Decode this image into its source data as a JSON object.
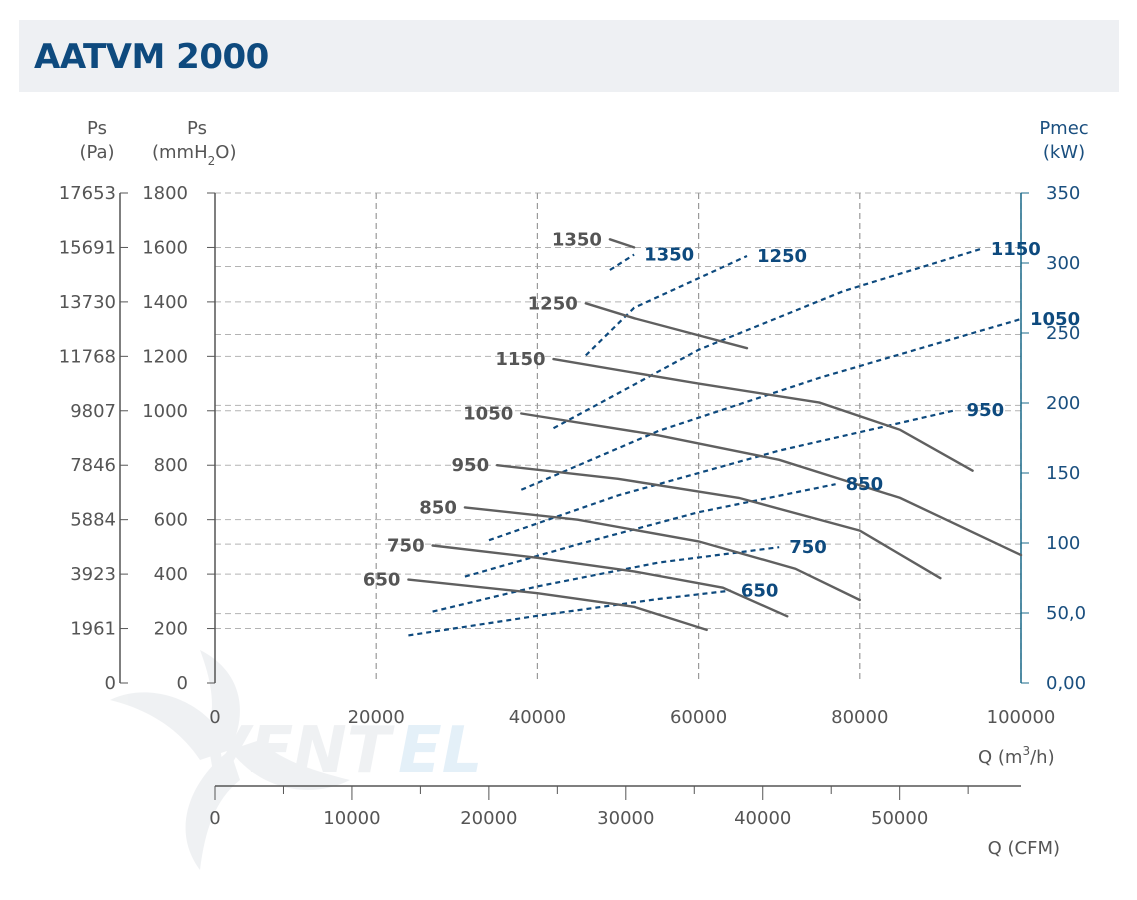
{
  "title": "AATVM 2000",
  "logo": {
    "text_main": "VENT",
    "text_accent": "EL"
  },
  "chart_data": {
    "type": "line",
    "title": "AATVM 2000",
    "x": {
      "label": "Q (m",
      "label_sup": "3",
      "label_end": "/h)",
      "range": [
        0,
        100000
      ],
      "ticks": [
        0,
        20000,
        40000,
        60000,
        80000,
        100000
      ],
      "grid": [
        20000,
        40000,
        60000,
        80000,
        100000
      ]
    },
    "x2": {
      "label": "Q (CFM)",
      "range": [
        0,
        58860
      ],
      "ticks": [
        0,
        10000,
        20000,
        30000,
        40000,
        50000
      ]
    },
    "y": {
      "label_line1": "Ps",
      "label_line2": "(mmH",
      "label_sub": "2",
      "label_end": "O)",
      "range": [
        0,
        1800
      ],
      "ticks": [
        "0",
        "200",
        "400",
        "600",
        "800",
        "1000",
        "1200",
        "1400",
        "1600",
        "1800"
      ],
      "grid": [
        200,
        255,
        400,
        510,
        600,
        800,
        1000,
        1020,
        1200,
        1280,
        1400,
        1530,
        1600,
        1800
      ]
    },
    "y_pa": {
      "label_line1": "Ps",
      "label_line2": "(Pa)",
      "ticks": [
        "0",
        "1961",
        "3923",
        "5884",
        "7846",
        "9807",
        "11768",
        "13730",
        "15691",
        "17653"
      ]
    },
    "y2": {
      "label_line1": "Pmec",
      "label_line2": "(kW)",
      "range": [
        0,
        350
      ],
      "ticks": [
        "0,00",
        "50,0",
        "100",
        "150",
        "200",
        "250",
        "300",
        "350"
      ]
    },
    "pressure_series": [
      {
        "name": "650",
        "points": [
          [
            24000,
            380
          ],
          [
            40000,
            330
          ],
          [
            52000,
            280
          ],
          [
            61000,
            195
          ]
        ]
      },
      {
        "name": "750",
        "points": [
          [
            27000,
            505
          ],
          [
            40000,
            460
          ],
          [
            52000,
            410
          ],
          [
            63000,
            350
          ],
          [
            71000,
            245
          ]
        ]
      },
      {
        "name": "850",
        "points": [
          [
            31000,
            645
          ],
          [
            45000,
            600
          ],
          [
            60000,
            520
          ],
          [
            72000,
            420
          ],
          [
            80000,
            305
          ]
        ]
      },
      {
        "name": "950",
        "points": [
          [
            35000,
            800
          ],
          [
            50000,
            750
          ],
          [
            65000,
            680
          ],
          [
            80000,
            560
          ],
          [
            90000,
            385
          ]
        ]
      },
      {
        "name": "1050",
        "points": [
          [
            38000,
            990
          ],
          [
            55000,
            910
          ],
          [
            70000,
            820
          ],
          [
            85000,
            680
          ],
          [
            100000,
            470
          ]
        ]
      },
      {
        "name": "1150",
        "points": [
          [
            42000,
            1190
          ],
          [
            60000,
            1100
          ],
          [
            75000,
            1030
          ],
          [
            85000,
            930
          ],
          [
            94000,
            780
          ]
        ]
      },
      {
        "name": "1250",
        "points": [
          [
            46000,
            1395
          ],
          [
            52000,
            1340
          ],
          [
            66000,
            1230
          ]
        ]
      },
      {
        "name": "1350",
        "points": [
          [
            49000,
            1630
          ],
          [
            52000,
            1600
          ]
        ]
      }
    ],
    "power_series": [
      {
        "name": "650",
        "points": [
          [
            24000,
            34
          ],
          [
            40000,
            48
          ],
          [
            55000,
            60
          ],
          [
            64000,
            66
          ]
        ]
      },
      {
        "name": "750",
        "points": [
          [
            27000,
            51
          ],
          [
            40000,
            69
          ],
          [
            55000,
            86
          ],
          [
            70000,
            97
          ]
        ]
      },
      {
        "name": "850",
        "points": [
          [
            31000,
            76
          ],
          [
            45000,
            99
          ],
          [
            60000,
            122
          ],
          [
            77000,
            142
          ]
        ]
      },
      {
        "name": "950",
        "points": [
          [
            34000,
            102
          ],
          [
            50000,
            134
          ],
          [
            70000,
            166
          ],
          [
            92000,
            195
          ]
        ]
      },
      {
        "name": "1050",
        "points": [
          [
            38000,
            138
          ],
          [
            55000,
            180
          ],
          [
            75000,
            218
          ],
          [
            100000,
            260
          ]
        ]
      },
      {
        "name": "1150",
        "points": [
          [
            42000,
            182
          ],
          [
            60000,
            238
          ],
          [
            78000,
            280
          ],
          [
            95000,
            310
          ]
        ]
      },
      {
        "name": "1250",
        "points": [
          [
            46000,
            234
          ],
          [
            52000,
            268
          ],
          [
            66000,
            305
          ]
        ]
      },
      {
        "name": "1350",
        "points": [
          [
            49000,
            295
          ],
          [
            52000,
            306
          ]
        ]
      }
    ]
  }
}
